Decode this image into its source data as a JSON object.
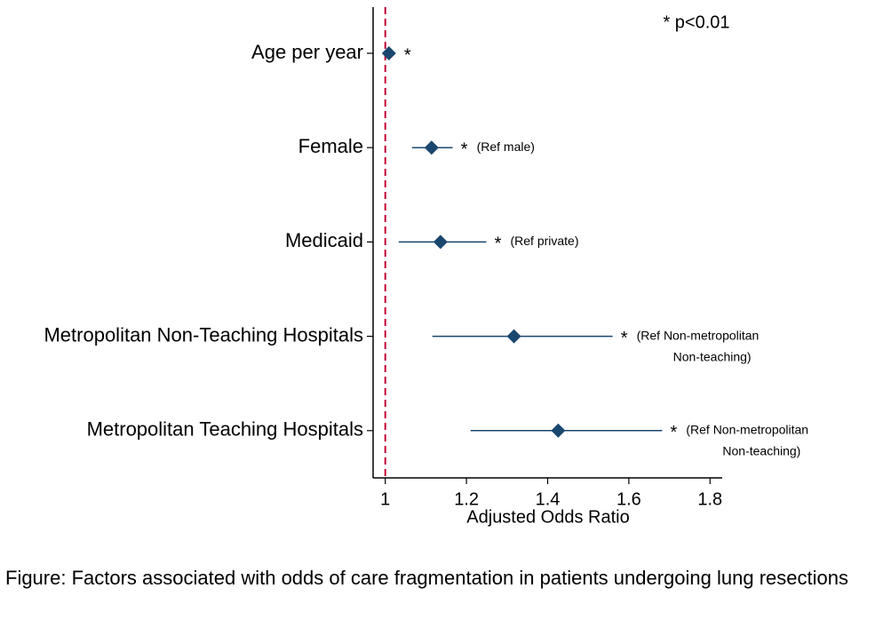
{
  "chart_data": {
    "type": "forest",
    "categories": [
      "Age per year",
      "Female",
      "Medicaid",
      "Metropolitan Non-Teaching Hospitals",
      "Metropolitan Teaching Hospitals"
    ],
    "values": [
      1.009,
      1.114,
      1.136,
      1.317,
      1.426
    ],
    "lower": [
      1.005,
      1.066,
      1.033,
      1.116,
      1.21
    ],
    "upper": [
      1.012,
      1.166,
      1.249,
      1.56,
      1.682
    ],
    "color": "#1a476f",
    "significance": [
      "*",
      "*",
      "*",
      "*",
      "*"
    ],
    "notes": [
      [],
      [
        "(Ref male)"
      ],
      [
        "(Ref private)"
      ],
      [
        "(Ref Non-metropolitan",
        "Non-teaching)"
      ],
      [
        "(Ref Non-metropolitan",
        "Non-teaching)"
      ]
    ],
    "legend_note": "* p<0.01",
    "reference_line": 1,
    "reference_color": "#c10534",
    "xlabel": "Adjusted Odds Ratio",
    "xlim": [
      0.97,
      1.83
    ],
    "xticks": [
      1,
      1.2,
      1.4,
      1.6,
      1.8
    ]
  },
  "caption": "Figure: Factors associated with odds of care fragmentation in patients undergoing lung resections"
}
